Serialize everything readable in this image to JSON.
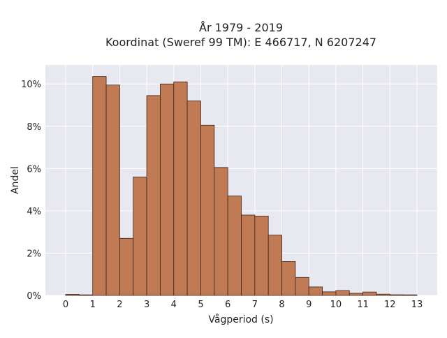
{
  "chart_data": {
    "type": "bar",
    "title": "År 1979 - 2019",
    "subtitle": "Koordinat (Sweref 99 TM): E 466717, N 6207247",
    "xlabel": "Vågperiod (s)",
    "ylabel": "Andel",
    "xlim": [
      -0.75,
      13.75
    ],
    "ylim": [
      0,
      10.9
    ],
    "xticks": [
      0,
      1,
      2,
      3,
      4,
      5,
      6,
      7,
      8,
      9,
      10,
      11,
      12,
      13
    ],
    "xtick_labels": [
      "0",
      "1",
      "2",
      "3",
      "4",
      "5",
      "6",
      "7",
      "8",
      "9",
      "10",
      "11",
      "12",
      "13"
    ],
    "yticks": [
      0,
      2,
      4,
      6,
      8,
      10
    ],
    "ytick_labels": [
      "0%",
      "2%",
      "4%",
      "6%",
      "8%",
      "10%"
    ],
    "grid": true,
    "bin_width": 0.5,
    "bins": [
      {
        "x0": 0.0,
        "x1": 0.5,
        "value": 0.05
      },
      {
        "x0": 0.5,
        "x1": 1.0,
        "value": 0.0
      },
      {
        "x0": 1.0,
        "x1": 1.5,
        "value": 10.35
      },
      {
        "x0": 1.5,
        "x1": 2.0,
        "value": 9.95
      },
      {
        "x0": 2.0,
        "x1": 2.5,
        "value": 2.7
      },
      {
        "x0": 2.5,
        "x1": 3.0,
        "value": 5.6
      },
      {
        "x0": 3.0,
        "x1": 3.5,
        "value": 9.45
      },
      {
        "x0": 3.5,
        "x1": 4.0,
        "value": 10.0
      },
      {
        "x0": 4.0,
        "x1": 4.5,
        "value": 10.1
      },
      {
        "x0": 4.5,
        "x1": 5.0,
        "value": 9.2
      },
      {
        "x0": 5.0,
        "x1": 5.5,
        "value": 8.05
      },
      {
        "x0": 5.5,
        "x1": 6.0,
        "value": 6.05
      },
      {
        "x0": 6.0,
        "x1": 6.5,
        "value": 4.7
      },
      {
        "x0": 6.5,
        "x1": 7.0,
        "value": 3.8
      },
      {
        "x0": 7.0,
        "x1": 7.5,
        "value": 3.75
      },
      {
        "x0": 7.5,
        "x1": 8.0,
        "value": 2.85
      },
      {
        "x0": 8.0,
        "x1": 8.5,
        "value": 1.6
      },
      {
        "x0": 8.5,
        "x1": 9.0,
        "value": 0.85
      },
      {
        "x0": 9.0,
        "x1": 9.5,
        "value": 0.4
      },
      {
        "x0": 9.5,
        "x1": 10.0,
        "value": 0.17
      },
      {
        "x0": 10.0,
        "x1": 10.5,
        "value": 0.23
      },
      {
        "x0": 10.5,
        "x1": 11.0,
        "value": 0.1
      },
      {
        "x0": 11.0,
        "x1": 11.5,
        "value": 0.16
      },
      {
        "x0": 11.5,
        "x1": 12.0,
        "value": 0.06
      },
      {
        "x0": 12.0,
        "x1": 12.5,
        "value": 0.03
      },
      {
        "x0": 12.5,
        "x1": 13.0,
        "value": 0.0
      }
    ],
    "colors": {
      "bar_fill": "#c07b54",
      "bar_edge": "#3a2418",
      "plot_bg": "#e8e8f1",
      "grid": "#ffffff",
      "text": "#222222"
    }
  }
}
